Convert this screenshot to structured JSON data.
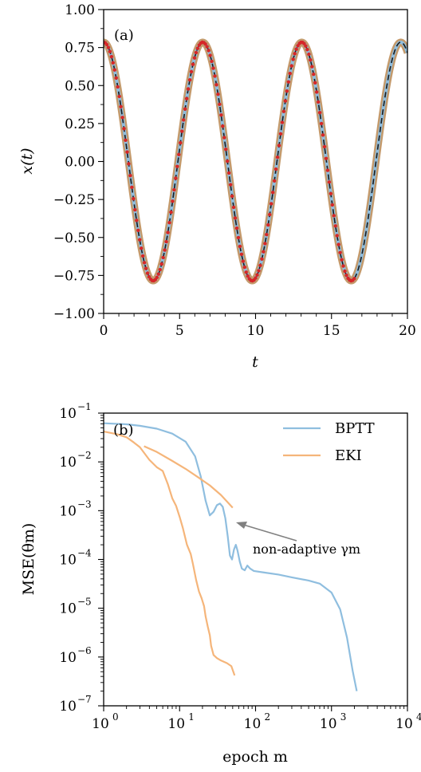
{
  "chart_data": [
    {
      "type": "line",
      "panel_label": "(a)",
      "xlabel": "t",
      "ylabel": "x(t)",
      "xlim": [
        0,
        20
      ],
      "ylim": [
        -1.0,
        1.0
      ],
      "x_ticks": [
        "0",
        "5",
        "10",
        "15",
        "20"
      ],
      "y_ticks": [
        "1.00",
        "0.75",
        "0.50",
        "0.25",
        "0.00",
        "−0.25",
        "−0.50",
        "−0.75",
        "−1.00"
      ],
      "grid": false,
      "series": [
        {
          "style": "line",
          "color": "#c49a6c",
          "amplitude": 0.785,
          "period": 6.52,
          "x_range": [
            0,
            20
          ]
        },
        {
          "style": "line",
          "color": "#8fbedf",
          "amplitude": 0.785,
          "period": 6.52,
          "x_range": [
            0,
            20
          ]
        },
        {
          "style": "dashed",
          "color": "#1a1a1a",
          "amplitude": 0.785,
          "period": 6.52,
          "x_range": [
            0,
            20
          ]
        },
        {
          "style": "dots",
          "color": "#d62728",
          "amplitude": 0.785,
          "period": 6.52,
          "x_range": [
            0,
            16.5
          ]
        }
      ]
    },
    {
      "type": "line",
      "panel_label": "(b)",
      "xlabel": "epoch m",
      "ylabel": "MSE(θm)",
      "x_scale": "log",
      "y_scale": "log",
      "xlim": [
        1,
        10000
      ],
      "ylim": [
        1e-07,
        0.1
      ],
      "x_ticks": [
        1,
        10,
        100,
        1000,
        10000
      ],
      "y_ticks": [
        0.1,
        0.01,
        0.001,
        0.0001,
        1e-05,
        1e-06,
        1e-07
      ],
      "legend_position": "top-right",
      "annotation": "non-adaptive γm",
      "series": [
        {
          "name": "BPTT",
          "color": "#8fbedf",
          "points": [
            [
              1,
              0.062
            ],
            [
              2,
              0.059
            ],
            [
              3,
              0.055
            ],
            [
              5,
              0.048
            ],
            [
              8,
              0.038
            ],
            [
              12,
              0.026
            ],
            [
              16,
              0.013
            ],
            [
              19,
              0.005
            ],
            [
              22,
              0.0016
            ],
            [
              25,
              0.0008
            ],
            [
              28,
              0.00095
            ],
            [
              31,
              0.0013
            ],
            [
              34,
              0.0014
            ],
            [
              37,
              0.0012
            ],
            [
              40,
              0.0007
            ],
            [
              43,
              0.0003
            ],
            [
              46,
              0.00012
            ],
            [
              49,
              0.0001
            ],
            [
              52,
              0.00016
            ],
            [
              55,
              0.0002
            ],
            [
              58,
              0.00015
            ],
            [
              62,
              9e-05
            ],
            [
              66,
              6.5e-05
            ],
            [
              72,
              6e-05
            ],
            [
              78,
              7.5e-05
            ],
            [
              85,
              6.5e-05
            ],
            [
              95,
              5.8e-05
            ],
            [
              130,
              5.4e-05
            ],
            [
              200,
              4.9e-05
            ],
            [
              300,
              4.3e-05
            ],
            [
              500,
              3.7e-05
            ],
            [
              700,
              3.2e-05
            ],
            [
              1000,
              2.1e-05
            ],
            [
              1300,
              9.5e-06
            ],
            [
              1600,
              2.5e-06
            ],
            [
              1900,
              5.2e-07
            ],
            [
              2150,
              2e-07
            ]
          ]
        },
        {
          "name": "EKI",
          "color": "#f5b57a",
          "segments": [
            [
              [
                1,
                0.042
              ],
              [
                1.5,
                0.037
              ],
              [
                2,
                0.032
              ],
              [
                2.5,
                0.025
              ],
              [
                3,
                0.02
              ],
              [
                4,
                0.011
              ],
              [
                5,
                0.0078
              ],
              [
                6,
                0.0065
              ],
              [
                7,
                0.0035
              ],
              [
                8,
                0.0018
              ],
              [
                9,
                0.00125
              ],
              [
                10,
                0.00075
              ],
              [
                11,
                0.00045
              ],
              [
                12.5,
                0.0002
              ],
              [
                14,
                0.00013
              ],
              [
                15,
                8e-05
              ],
              [
                16.5,
                3.8e-05
              ],
              [
                18,
                2.2e-05
              ],
              [
                19.5,
                1.6e-05
              ],
              [
                21,
                1.1e-05
              ],
              [
                22,
                6.8e-06
              ],
              [
                23.5,
                4.2e-06
              ],
              [
                25,
                2.8e-06
              ],
              [
                26,
                1.7e-06
              ],
              [
                28,
                1.1e-06
              ],
              [
                31,
                9.5e-07
              ],
              [
                35,
                8.5e-07
              ],
              [
                42,
                7.5e-07
              ],
              [
                48,
                6.5e-07
              ],
              [
                53,
                4.2e-07
              ]
            ],
            [
              [
                3.4,
                0.021
              ],
              [
                5,
                0.016
              ],
              [
                8,
                0.0105
              ],
              [
                12,
                0.0072
              ],
              [
                18,
                0.0047
              ],
              [
                25,
                0.0033
              ],
              [
                35,
                0.0021
              ],
              [
                50,
                0.00115
              ]
            ]
          ]
        }
      ]
    }
  ]
}
